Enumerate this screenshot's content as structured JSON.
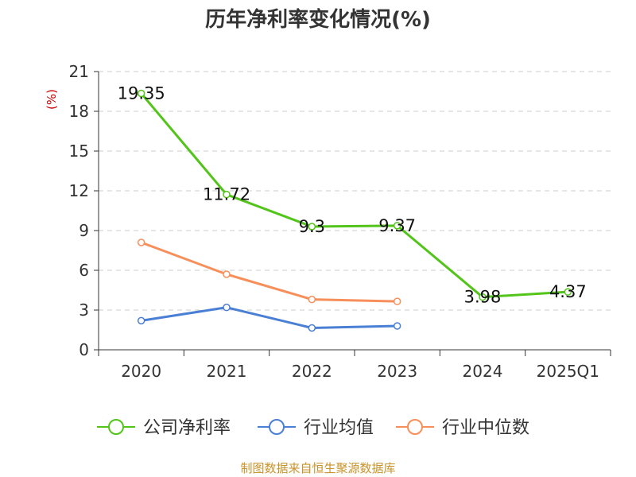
{
  "title": "历年净利率变化情况(%)",
  "footer": "制图数据来自恒生聚源数据库",
  "colors": {
    "company": "#52c41a",
    "industry_avg": "#4a7fd6",
    "industry_median": "#f78f5a",
    "ylabel": "#cc0000",
    "footer": "#c8932b"
  },
  "chart_data": {
    "type": "line",
    "categories": [
      "2020",
      "2021",
      "2022",
      "2023",
      "2024",
      "2025Q1"
    ],
    "ylabel": "(%)",
    "ylim": [
      0,
      21
    ],
    "yticks": [
      0,
      3,
      6,
      9,
      12,
      15,
      18,
      21
    ],
    "grid": true,
    "legend_position": "bottom",
    "series": [
      {
        "name": "公司净利率",
        "key": "company",
        "values": [
          19.35,
          11.72,
          9.3,
          9.37,
          3.98,
          4.37
        ],
        "labels": [
          "19.35",
          "11.72",
          "9.3",
          "9.37",
          "3.98",
          "4.37"
        ]
      },
      {
        "name": "行业均值",
        "key": "industry_avg",
        "values": [
          2.2,
          3.2,
          1.65,
          1.8,
          null,
          null
        ]
      },
      {
        "name": "行业中位数",
        "key": "industry_median",
        "values": [
          8.1,
          5.7,
          3.8,
          3.65,
          null,
          null
        ]
      }
    ]
  }
}
